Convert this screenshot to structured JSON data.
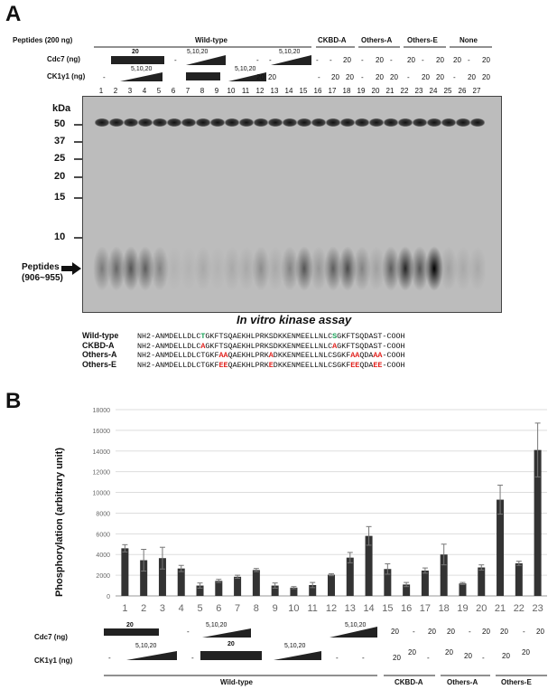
{
  "panelA": {
    "letter": "A",
    "peptides_label": "Peptides (200 ng)",
    "groups": [
      "Wild-type",
      "CKBD-A",
      "Others-A",
      "Others-E",
      "None"
    ],
    "cdc7_label": "Cdc7 (ng)",
    "ck1_label": "CK1γ1 (ng)",
    "wt_cdc7_bar": "20",
    "wt_ck1_ramp": "5,10,20",
    "wt_cdc7_ramp": "5,10,20",
    "wt_ck1_bar": "20",
    "ramp3": "5,10,20",
    "ramp4": "5,10,20",
    "cdc7_vals": [
      "-",
      "-",
      "-",
      "-",
      "-",
      "20",
      "-",
      "20",
      "-",
      "20",
      "-",
      "20",
      "20",
      "-",
      "20"
    ],
    "ck1_vals": [
      "-",
      "20",
      "20",
      "-",
      "20",
      "20",
      "-",
      "20",
      "20",
      "-",
      "20",
      "20",
      "-",
      "20",
      "20",
      "-",
      "-",
      "20",
      "20"
    ],
    "lanes": [
      "1",
      "2",
      "3",
      "4",
      "5",
      "6",
      "7",
      "8",
      "9",
      "10",
      "11",
      "12",
      "13",
      "14",
      "15",
      "16",
      "17",
      "18",
      "19",
      "20",
      "21",
      "22",
      "23",
      "24",
      "25",
      "26",
      "27"
    ],
    "kda_title": "kDa",
    "markers": [
      "50",
      "37",
      "25",
      "20",
      "15",
      "10"
    ],
    "peptides_arrow": "Peptides",
    "peptides_range": "(906~955)",
    "caption": "In vitro kinase assay",
    "sequences": [
      {
        "label": "Wild-type",
        "parts": [
          [
            "n",
            "NH2-ANMDELLDLC"
          ],
          [
            "g",
            "T"
          ],
          [
            "n",
            "GKFTSQAEKHLPRKSDKKENMEELLNLC"
          ],
          [
            "g",
            "S"
          ],
          [
            "n",
            "GKFTSQDAST-COOH"
          ]
        ]
      },
      {
        "label": "CKBD-A",
        "parts": [
          [
            "n",
            "NH2-ANMDELLDLC"
          ],
          [
            "r",
            "A"
          ],
          [
            "n",
            "GKFTSQAEKHLPRKSDKKENMEELLNLC"
          ],
          [
            "r",
            "A"
          ],
          [
            "n",
            "GKFTSQDAST-COOH"
          ]
        ]
      },
      {
        "label": "Others-A",
        "parts": [
          [
            "n",
            "NH2-ANMDELLDLCTGKF"
          ],
          [
            "r",
            "AA"
          ],
          [
            "n",
            "QAEKHLPRK"
          ],
          [
            "r",
            "A"
          ],
          [
            "n",
            "DKKENMEELLNLCSGKF"
          ],
          [
            "r",
            "AA"
          ],
          [
            "n",
            "QDA"
          ],
          [
            "r",
            "AA"
          ],
          [
            "n",
            "-COOH"
          ]
        ]
      },
      {
        "label": "Others-E",
        "parts": [
          [
            "n",
            "NH2-ANMDELLDLCTGKF"
          ],
          [
            "r",
            "EE"
          ],
          [
            "n",
            "QAEKHLPRK"
          ],
          [
            "r",
            "E"
          ],
          [
            "n",
            "DKKENMEELLNLCSGKF"
          ],
          [
            "r",
            "EE"
          ],
          [
            "n",
            "QDA"
          ],
          [
            "r",
            "EE"
          ],
          [
            "n",
            "-COOH"
          ]
        ]
      }
    ]
  },
  "panelB": {
    "letter": "B",
    "bottom_cdc7_label": "Cdc7 (ng)",
    "bottom_ck1_label": "CK1γ1 (ng)",
    "b_cdc7_bar": "20",
    "b_ck1_ramp": "5,10,20",
    "b_cdc7_ramp": "5,10,20",
    "b_ck1_bar": "20",
    "b_ck1_ramp2": "5,10,20",
    "b_cdc7_ramp2": "5,10,20",
    "b_cdc7_vals": [
      "-",
      "20",
      "-",
      "20",
      "20",
      "-",
      "20",
      "20",
      "-",
      "20"
    ],
    "b_ck1_vals": [
      "-",
      "-",
      "-",
      "-",
      "20",
      "20",
      "-",
      "20",
      "20",
      "-",
      "20",
      "20"
    ],
    "groups": [
      "Wild-type",
      "CKBD-A",
      "Others-A",
      "Others-E"
    ]
  },
  "chart_data": {
    "type": "bar",
    "categories": [
      "1",
      "2",
      "3",
      "4",
      "5",
      "6",
      "7",
      "8",
      "9",
      "10",
      "11",
      "12",
      "13",
      "14",
      "15",
      "16",
      "17",
      "18",
      "19",
      "20",
      "21",
      "22",
      "23"
    ],
    "values": [
      4600,
      3450,
      3650,
      2650,
      1000,
      1450,
      1850,
      2500,
      1000,
      800,
      1050,
      2050,
      3700,
      5800,
      2600,
      1100,
      2450,
      4000,
      1200,
      2750,
      9300,
      3150,
      14100
    ],
    "errors": [
      350,
      1050,
      1050,
      300,
      250,
      150,
      150,
      150,
      250,
      100,
      250,
      100,
      500,
      900,
      500,
      200,
      250,
      1000,
      100,
      250,
      1400,
      200,
      2600
    ],
    "ylabel": "Phosphorylation (arbitrary unit)",
    "ylim": [
      0,
      18000
    ],
    "yticks": [
      "0",
      "2000",
      "4000",
      "6000",
      "8000",
      "10000",
      "12000",
      "14000",
      "16000",
      "18000"
    ],
    "grid": true,
    "bar_color": "#333333"
  }
}
